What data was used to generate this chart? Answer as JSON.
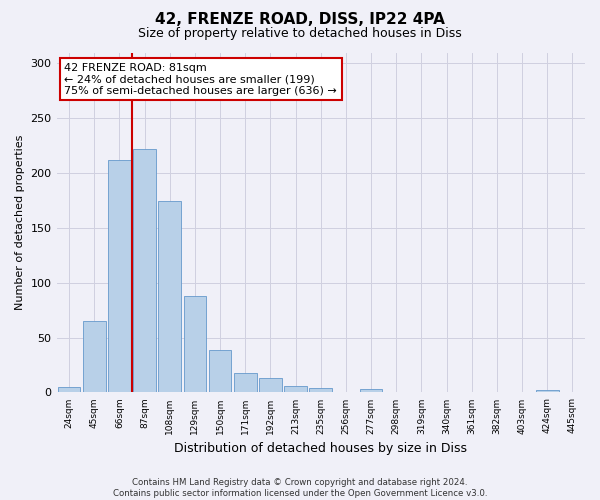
{
  "title1": "42, FRENZE ROAD, DISS, IP22 4PA",
  "title2": "Size of property relative to detached houses in Diss",
  "xlabel": "Distribution of detached houses by size in Diss",
  "ylabel": "Number of detached properties",
  "categories": [
    "24sqm",
    "45sqm",
    "66sqm",
    "87sqm",
    "108sqm",
    "129sqm",
    "150sqm",
    "171sqm",
    "192sqm",
    "213sqm",
    "235sqm",
    "256sqm",
    "277sqm",
    "298sqm",
    "319sqm",
    "340sqm",
    "361sqm",
    "382sqm",
    "403sqm",
    "424sqm",
    "445sqm"
  ],
  "values": [
    5,
    65,
    212,
    222,
    175,
    88,
    39,
    18,
    13,
    6,
    4,
    0,
    3,
    0,
    0,
    0,
    0,
    0,
    0,
    2,
    0
  ],
  "bar_color": "#b8d0e8",
  "bar_edge_color": "#6699cc",
  "vline_color": "#cc0000",
  "annotation_text": "42 FRENZE ROAD: 81sqm\n← 24% of detached houses are smaller (199)\n75% of semi-detached houses are larger (636) →",
  "annotation_box_color": "white",
  "annotation_box_edgecolor": "#cc0000",
  "ylim": [
    0,
    310
  ],
  "yticks": [
    0,
    50,
    100,
    150,
    200,
    250,
    300
  ],
  "footer": "Contains HM Land Registry data © Crown copyright and database right 2024.\nContains public sector information licensed under the Open Government Licence v3.0.",
  "bg_color": "#f0f0f8",
  "grid_color": "#d0d0e0"
}
